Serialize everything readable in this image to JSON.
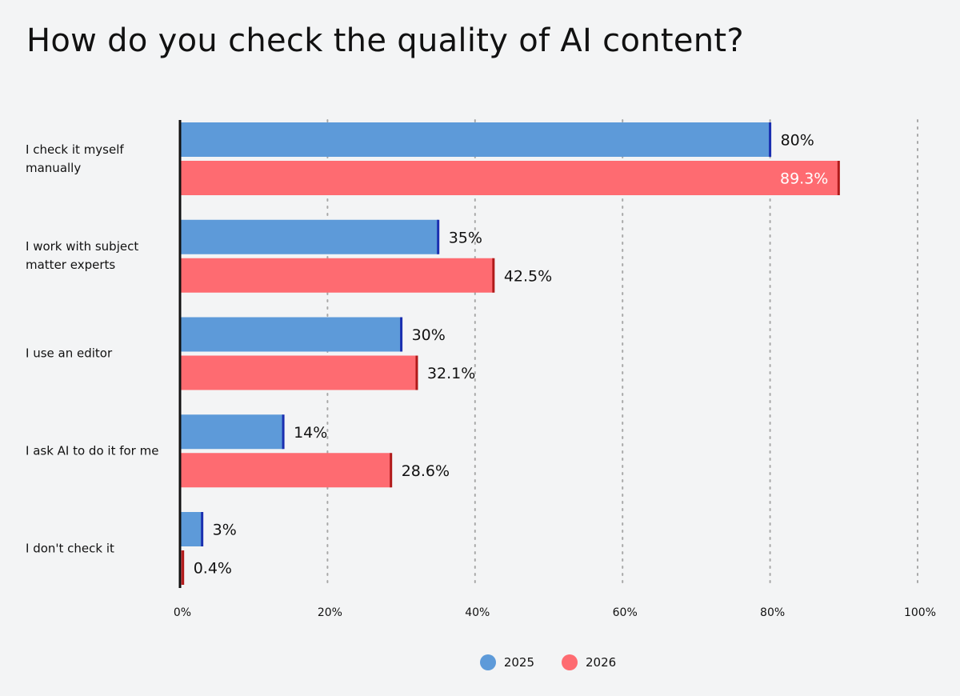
{
  "title": "How do you check the quality of AI content?",
  "colors": {
    "series_2025": "#5d9ad9",
    "series_2025_edge": "#1a2fb0",
    "series_2026": "#fe6b71",
    "series_2026_edge": "#b01a1a",
    "background": "#f3f4f5",
    "gridline": "#a8a8a8"
  },
  "chart_data": {
    "type": "bar",
    "orientation": "horizontal",
    "title": "How do you check the quality of AI content?",
    "categories": [
      "I check it myself manually",
      "I work with subject matter experts",
      "I use an editor",
      "I ask AI to do it for me",
      "I don't check it"
    ],
    "series": [
      {
        "name": "2025",
        "values": [
          80,
          35,
          30,
          14,
          3
        ],
        "labels": [
          "80%",
          "35%",
          "30%",
          "14%",
          "3%"
        ]
      },
      {
        "name": "2026",
        "values": [
          89.3,
          42.5,
          32.1,
          28.6,
          0.4
        ],
        "labels": [
          "89.3%",
          "42.5%",
          "32.1%",
          "28.6%",
          "0.4%"
        ]
      }
    ],
    "xlim": [
      0,
      100
    ],
    "x_ticks": [
      0,
      20,
      40,
      60,
      80,
      100
    ],
    "x_tick_labels": [
      "0%",
      "20%",
      "40%",
      "60%",
      "80%",
      "100%"
    ],
    "grid": "vertical dotted",
    "legend_position": "bottom-center"
  }
}
